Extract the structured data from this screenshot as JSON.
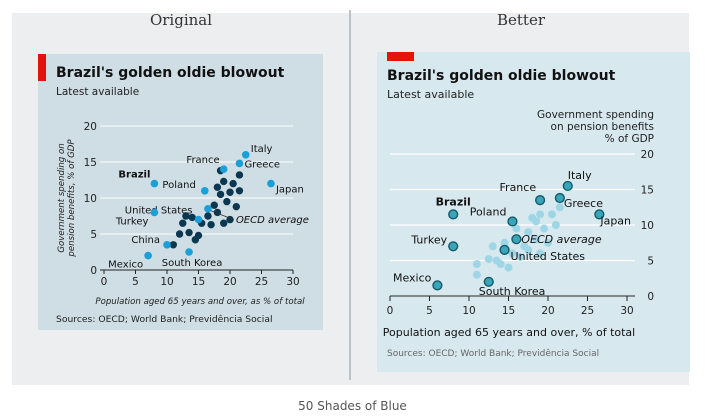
{
  "page": {
    "left_heading": "Original",
    "right_heading": "Better",
    "caption": "50 Shades of Blue"
  },
  "colors": {
    "brand_red": "#e3120b",
    "dark_point": "#0b3850",
    "light_point": "#1a9fd6",
    "better_light": "#9fd6e6",
    "better_highlight": "#3aa5b9",
    "better_outline": "#135a68"
  },
  "chart_data": [
    {
      "type": "scatter",
      "panel": "Original",
      "title": "Brazil's golden oldie blowout",
      "subtitle": "Latest available",
      "xlabel": "Population aged 65 years and over, as % of total",
      "ylabel": "Government spending on pension benefits, % of GDP",
      "xlim": [
        0,
        30
      ],
      "ylim": [
        0,
        20
      ],
      "x_ticks": [
        "0",
        "5",
        "10",
        "15",
        "20",
        "25",
        "30"
      ],
      "y_ticks": [
        "0",
        "5",
        "10",
        "15",
        "20"
      ],
      "grid": "horizontal",
      "source": "Sources: OECD; World Bank; Previdência Social",
      "labeled_points": [
        {
          "name": "Brazil",
          "x": 8,
          "y": 12,
          "annotation": "Brazil"
        },
        {
          "name": "Italy",
          "x": 22.5,
          "y": 16,
          "annotation": "Italy"
        },
        {
          "name": "France",
          "x": 19,
          "y": 14,
          "annotation": "France"
        },
        {
          "name": "Greece",
          "x": 21.5,
          "y": 14.8,
          "annotation": "Greece"
        },
        {
          "name": "Japan",
          "x": 26.5,
          "y": 12,
          "annotation": "Japan"
        },
        {
          "name": "Poland",
          "x": 16,
          "y": 11,
          "annotation": "Poland"
        },
        {
          "name": "United States",
          "x": 15,
          "y": 7,
          "annotation": "United States"
        },
        {
          "name": "OECD average",
          "x": 16.5,
          "y": 8.5,
          "annotation": "OECD average"
        },
        {
          "name": "Turkey",
          "x": 8,
          "y": 8,
          "annotation": "Turkey"
        },
        {
          "name": "China",
          "x": 10,
          "y": 3.5,
          "annotation": "China"
        },
        {
          "name": "Mexico",
          "x": 7,
          "y": 2,
          "annotation": "Mexico"
        },
        {
          "name": "South Korea",
          "x": 13.5,
          "y": 2.5,
          "annotation": "South Korea"
        }
      ],
      "other_points": [
        [
          11,
          3.5
        ],
        [
          12,
          5
        ],
        [
          12.5,
          6.5
        ],
        [
          13,
          7.5
        ],
        [
          13.5,
          5.2
        ],
        [
          14,
          7.3
        ],
        [
          14.5,
          4.2
        ],
        [
          15,
          4.8
        ],
        [
          15.5,
          6.5
        ],
        [
          16.5,
          7.5
        ],
        [
          17,
          6.3
        ],
        [
          17.5,
          9
        ],
        [
          18,
          11.5
        ],
        [
          18,
          8
        ],
        [
          18.5,
          10.5
        ],
        [
          19,
          6.5
        ],
        [
          19,
          12.3
        ],
        [
          19.5,
          9.5
        ],
        [
          20,
          7
        ],
        [
          20,
          10.8
        ],
        [
          20.5,
          12
        ],
        [
          21,
          8.8
        ],
        [
          21.5,
          11
        ],
        [
          21.5,
          13.2
        ],
        [
          18.5,
          13.8
        ]
      ]
    },
    {
      "type": "scatter",
      "panel": "Better",
      "title": "Brazil's golden oldie blowout",
      "subtitle": "Latest available",
      "ylabel": "Government spending on pension benefits % of GDP",
      "xlabel": "Population aged 65 years and over, % of total",
      "xlim": [
        0,
        30
      ],
      "ylim": [
        0,
        20
      ],
      "x_ticks": [
        "0",
        "5",
        "10",
        "15",
        "20",
        "25",
        "30"
      ],
      "y_ticks": [
        "0",
        "5",
        "10",
        "15",
        "20"
      ],
      "grid": "horizontal",
      "source": "Sources: OECD; World Bank; Previdência Social",
      "labeled_points": [
        {
          "name": "Brazil",
          "x": 8,
          "y": 11.5,
          "annotation": "Brazil"
        },
        {
          "name": "France",
          "x": 19,
          "y": 13.5,
          "annotation": "France"
        },
        {
          "name": "Italy",
          "x": 22.5,
          "y": 15.5,
          "annotation": "Italy"
        },
        {
          "name": "Greece",
          "x": 21.5,
          "y": 13.8,
          "annotation": "Greece"
        },
        {
          "name": "Japan",
          "x": 26.5,
          "y": 11.5,
          "annotation": "Japan"
        },
        {
          "name": "Poland",
          "x": 15.5,
          "y": 10.5,
          "annotation": "Poland"
        },
        {
          "name": "Turkey",
          "x": 8,
          "y": 7,
          "annotation": "Turkey"
        },
        {
          "name": "OECD average",
          "x": 16,
          "y": 8,
          "annotation": "OECD average"
        },
        {
          "name": "United States",
          "x": 14.5,
          "y": 6.5,
          "annotation": "United States"
        },
        {
          "name": "Mexico",
          "x": 6,
          "y": 1.5,
          "annotation": "Mexico"
        },
        {
          "name": "South Korea",
          "x": 12.5,
          "y": 2,
          "annotation": "South Korea"
        }
      ],
      "other_points": [
        [
          11,
          3
        ],
        [
          11,
          4.5
        ],
        [
          12.5,
          5.2
        ],
        [
          13,
          7
        ],
        [
          13.5,
          5
        ],
        [
          14,
          4.5
        ],
        [
          14.5,
          7.5
        ],
        [
          15,
          4
        ],
        [
          15.5,
          6
        ],
        [
          16,
          9.5
        ],
        [
          16.5,
          5.5
        ],
        [
          17,
          7
        ],
        [
          17.5,
          9
        ],
        [
          18,
          11
        ],
        [
          18.5,
          8
        ],
        [
          18.5,
          10.5
        ],
        [
          19,
          6
        ],
        [
          19.5,
          9.5
        ],
        [
          20,
          7.5
        ],
        [
          20.5,
          11.5
        ],
        [
          21,
          10
        ],
        [
          21.5,
          12.5
        ],
        [
          17.5,
          6.5
        ],
        [
          19,
          11.5
        ]
      ]
    }
  ]
}
